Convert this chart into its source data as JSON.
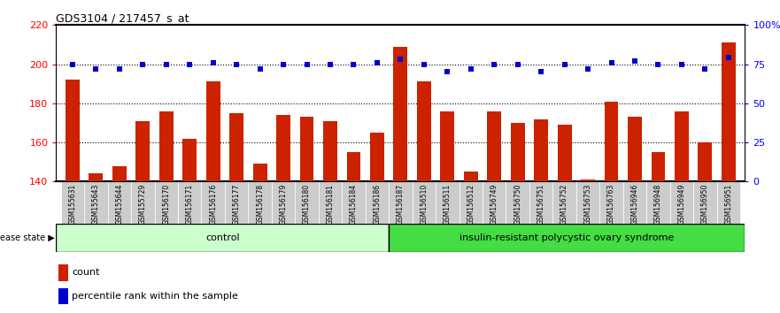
{
  "title": "GDS3104 / 217457_s_at",
  "samples": [
    "GSM155631",
    "GSM155643",
    "GSM155644",
    "GSM155729",
    "GSM156170",
    "GSM156171",
    "GSM156176",
    "GSM156177",
    "GSM156178",
    "GSM156179",
    "GSM156180",
    "GSM156181",
    "GSM156184",
    "GSM156186",
    "GSM156187",
    "GSM156510",
    "GSM156511",
    "GSM156512",
    "GSM156749",
    "GSM156750",
    "GSM156751",
    "GSM156752",
    "GSM156753",
    "GSM156763",
    "GSM156946",
    "GSM156948",
    "GSM156949",
    "GSM156950",
    "GSM156951"
  ],
  "counts": [
    192,
    144,
    148,
    171,
    176,
    162,
    191,
    175,
    149,
    174,
    173,
    171,
    155,
    165,
    209,
    191,
    176,
    145,
    176,
    170,
    172,
    169,
    141,
    181,
    173,
    155,
    176,
    160,
    211
  ],
  "percentiles": [
    75,
    72,
    72,
    75,
    75,
    75,
    76,
    75,
    72,
    75,
    75,
    75,
    75,
    76,
    78,
    75,
    70,
    72,
    75,
    75,
    70,
    75,
    72,
    76,
    77,
    75,
    75,
    72,
    79
  ],
  "group_labels": [
    "control",
    "insulin-resistant polycystic ovary syndrome"
  ],
  "group_sizes": [
    14,
    15
  ],
  "bar_color": "#cc2200",
  "dot_color": "#0000cc",
  "ylim_left": [
    140,
    220
  ],
  "ylim_right": [
    0,
    100
  ],
  "yticks_left": [
    140,
    160,
    180,
    200,
    220
  ],
  "yticks_right": [
    0,
    25,
    50,
    75,
    100
  ],
  "ytick_labels_right": [
    "0",
    "25",
    "50",
    "75",
    "100%"
  ],
  "plot_bg_color": "#ffffff",
  "disease_state_label": "disease state",
  "group1_color": "#ccffcc",
  "group2_color": "#44dd44",
  "tick_bg_color": "#d0d0d0"
}
